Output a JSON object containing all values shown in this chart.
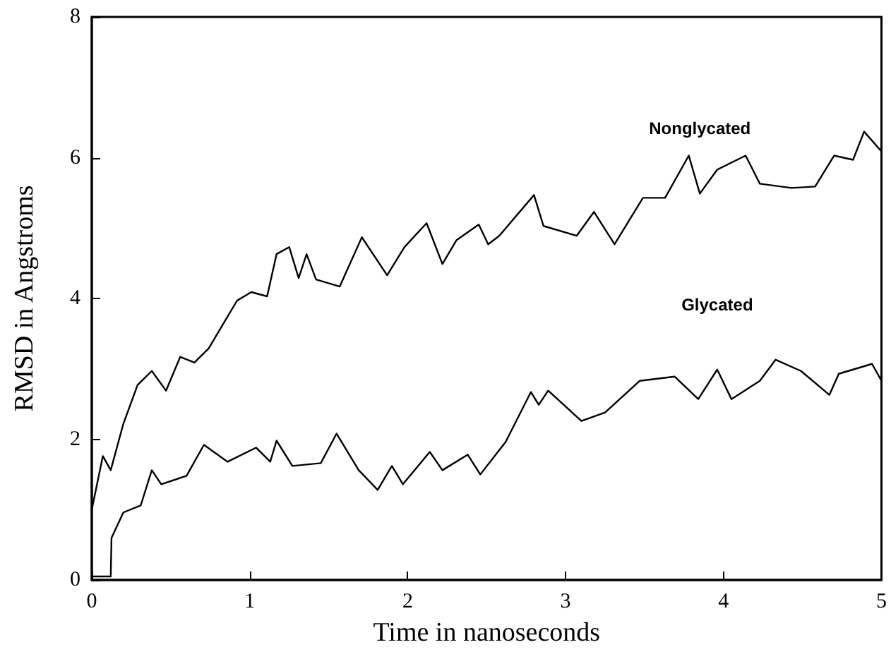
{
  "chart_data": {
    "type": "line",
    "xlabel": "Time in nanoseconds",
    "ylabel": "RMSD in Angstroms",
    "xlim": [
      0,
      5
    ],
    "xticks": [
      0,
      1,
      2,
      3,
      4,
      5
    ],
    "ylim": [
      0,
      8
    ],
    "yticks": [
      0,
      2,
      4,
      6,
      8
    ],
    "grid": false,
    "legend": false,
    "marker": "none",
    "line_style": "solid",
    "series": [
      {
        "name": "Nonglycated",
        "color": "#000000",
        "x": [
          0,
          0.07,
          0.12,
          0.2,
          0.29,
          0.38,
          0.47,
          0.56,
          0.65,
          0.74,
          0.83,
          0.92,
          1.01,
          1.11,
          1.17,
          1.25,
          1.31,
          1.36,
          1.42,
          1.57,
          1.71,
          1.87,
          1.98,
          2.12,
          2.22,
          2.31,
          2.45,
          2.51,
          2.58,
          2.8,
          2.86,
          3.07,
          3.18,
          3.31,
          3.49,
          3.63,
          3.78,
          3.85,
          3.96,
          4.14,
          4.23,
          4.43,
          4.58,
          4.7,
          4.82,
          4.89,
          5.0
        ],
        "values": [
          1.0,
          1.76,
          1.56,
          2.22,
          2.77,
          2.97,
          2.69,
          3.17,
          3.09,
          3.29,
          3.63,
          3.97,
          4.09,
          4.03,
          4.63,
          4.73,
          4.29,
          4.63,
          4.27,
          4.17,
          4.87,
          4.33,
          4.73,
          5.07,
          4.49,
          4.83,
          5.05,
          4.77,
          4.89,
          5.47,
          5.03,
          4.89,
          5.23,
          4.77,
          5.43,
          5.43,
          6.03,
          5.49,
          5.83,
          6.03,
          5.63,
          5.57,
          5.59,
          6.03,
          5.97,
          6.37,
          6.09
        ]
      },
      {
        "name": "Glycated",
        "color": "#000000",
        "x": [
          0,
          0.12,
          0.125,
          0.2,
          0.31,
          0.38,
          0.44,
          0.6,
          0.71,
          0.86,
          1.04,
          1.13,
          1.17,
          1.27,
          1.45,
          1.55,
          1.69,
          1.81,
          1.9,
          1.97,
          2.14,
          2.22,
          2.38,
          2.46,
          2.62,
          2.78,
          2.83,
          2.89,
          3.1,
          3.25,
          3.47,
          3.69,
          3.84,
          3.96,
          4.05,
          4.23,
          4.33,
          4.49,
          4.67,
          4.73,
          4.94,
          5.0
        ],
        "values": [
          0.05,
          0.05,
          0.6,
          0.96,
          1.06,
          1.56,
          1.36,
          1.48,
          1.92,
          1.68,
          1.88,
          1.68,
          1.98,
          1.62,
          1.66,
          2.08,
          1.56,
          1.28,
          1.62,
          1.36,
          1.82,
          1.56,
          1.78,
          1.5,
          1.96,
          2.67,
          2.49,
          2.69,
          2.26,
          2.38,
          2.83,
          2.89,
          2.57,
          2.99,
          2.57,
          2.83,
          3.13,
          2.97,
          2.63,
          2.93,
          3.07,
          2.83
        ]
      }
    ]
  }
}
